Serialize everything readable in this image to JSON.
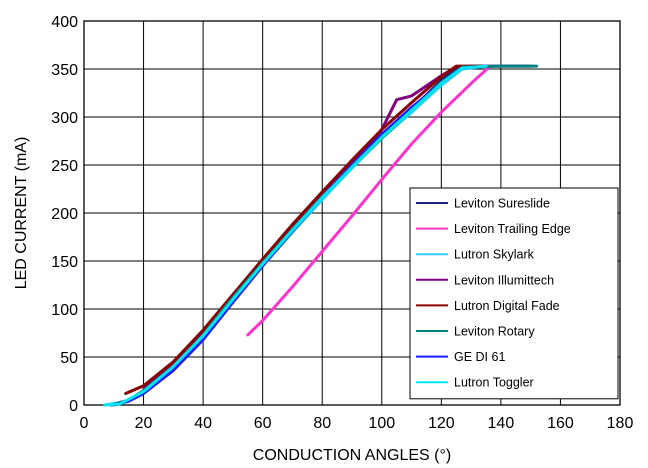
{
  "chart_data": {
    "type": "line",
    "title": "",
    "xlabel": "CONDUCTION ANGLES (°)",
    "ylabel": "LED CURRENT (mA)",
    "xlim": [
      0,
      180
    ],
    "ylim": [
      0,
      400
    ],
    "xticks": [
      0,
      20,
      40,
      60,
      80,
      100,
      120,
      140,
      160,
      180
    ],
    "yticks": [
      0,
      50,
      100,
      150,
      200,
      250,
      300,
      350,
      400
    ],
    "grid": true,
    "legend_position": "bottom-right, inside plot",
    "series": [
      {
        "name": "Leviton Sureslide",
        "color": "#1a237e",
        "x": [
          9,
          15,
          20,
          30,
          40,
          50,
          60,
          70,
          80,
          90,
          100,
          110,
          120,
          126,
          130,
          140,
          150
        ],
        "y": [
          0,
          5,
          15,
          40,
          72,
          110,
          147,
          183,
          218,
          252,
          282,
          308,
          338,
          352,
          353,
          353,
          353
        ]
      },
      {
        "name": "Leviton Trailing Edge",
        "color": "#ff33cc",
        "x": [
          55,
          60,
          70,
          80,
          90,
          100,
          110,
          120,
          130,
          136
        ],
        "y": [
          73,
          88,
          123,
          160,
          197,
          235,
          272,
          305,
          335,
          352
        ]
      },
      {
        "name": "Lutron Skylark",
        "color": "#33ccff",
        "x": [
          7,
          15,
          20,
          30,
          40,
          50,
          60,
          70,
          80,
          90,
          100,
          110,
          120,
          127,
          135
        ],
        "y": [
          0,
          4,
          13,
          38,
          70,
          108,
          145,
          180,
          214,
          247,
          278,
          305,
          333,
          350,
          353
        ]
      },
      {
        "name": "Leviton Illumittech",
        "color": "#800080",
        "x": [
          20,
          30,
          40,
          50,
          60,
          70,
          80,
          90,
          100,
          105,
          110,
          120,
          125,
          135
        ],
        "y": [
          18,
          43,
          76,
          113,
          150,
          186,
          220,
          253,
          287,
          318,
          322,
          343,
          352,
          353
        ]
      },
      {
        "name": "Lutron Digital Fade",
        "color": "#8b0000",
        "x": [
          14,
          20,
          30,
          40,
          50,
          60,
          70,
          80,
          90,
          100,
          110,
          120,
          125,
          135
        ],
        "y": [
          12,
          20,
          45,
          78,
          115,
          152,
          188,
          222,
          255,
          287,
          315,
          342,
          353,
          353
        ]
      },
      {
        "name": "Leviton Rotary",
        "color": "#008080",
        "x": [
          9,
          15,
          20,
          30,
          40,
          50,
          60,
          70,
          80,
          90,
          100,
          110,
          120,
          127,
          140,
          152
        ],
        "y": [
          0,
          5,
          15,
          40,
          73,
          112,
          148,
          183,
          217,
          248,
          278,
          307,
          336,
          352,
          353,
          353
        ]
      },
      {
        "name": "GE DI 61",
        "color": "#1a1aff",
        "x": [
          10,
          15,
          20,
          30,
          40,
          50,
          60,
          70,
          80,
          90,
          100,
          110,
          120,
          127,
          135
        ],
        "y": [
          0,
          4,
          12,
          36,
          68,
          107,
          145,
          181,
          216,
          250,
          282,
          310,
          335,
          351,
          353
        ]
      },
      {
        "name": "Lutron Toggler",
        "color": "#00e5ee",
        "x": [
          7,
          12,
          20,
          30,
          40,
          50,
          60,
          70,
          80,
          90,
          100,
          110,
          120,
          127,
          135
        ],
        "y": [
          0,
          1,
          14,
          40,
          72,
          110,
          147,
          182,
          216,
          248,
          279,
          307,
          335,
          351,
          353
        ]
      }
    ]
  }
}
